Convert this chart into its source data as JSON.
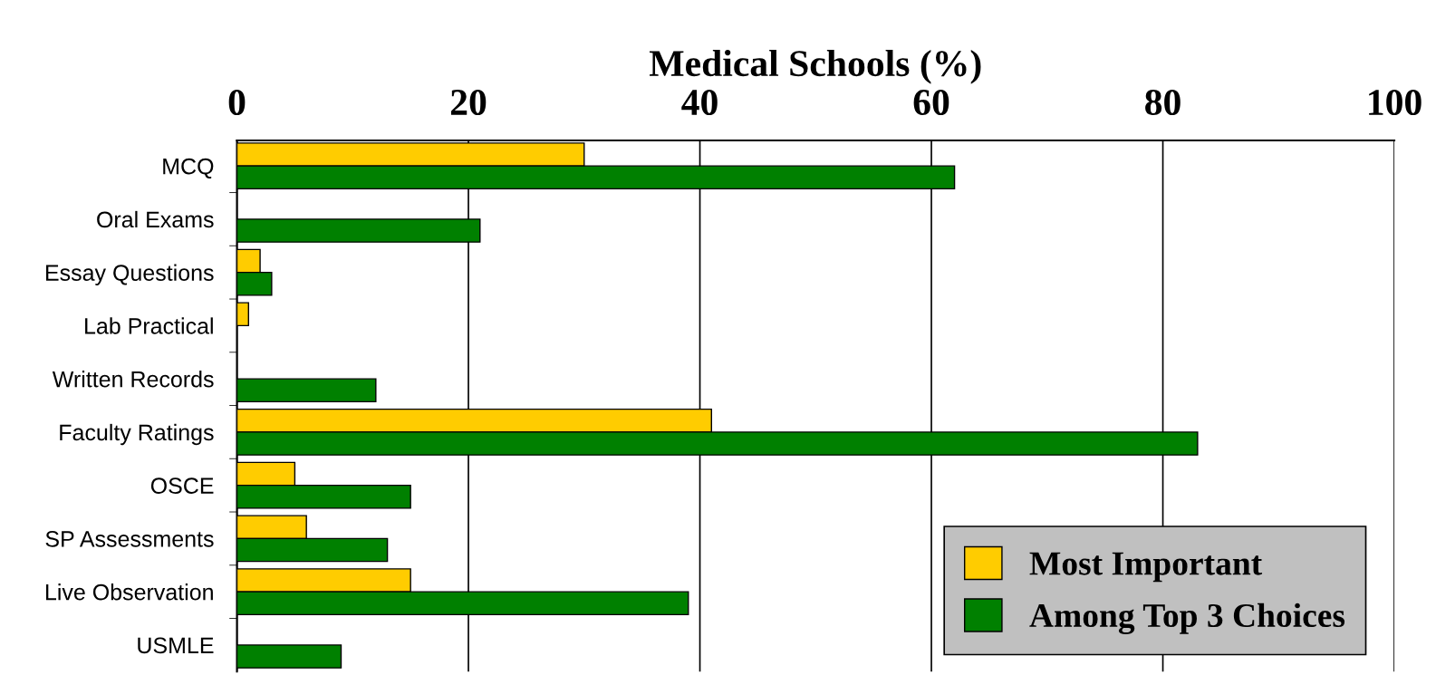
{
  "chart_data": {
    "type": "bar",
    "orientation": "horizontal",
    "xlabel": "Medical Schools (%)",
    "categories": [
      "MCQ",
      "Oral Exams",
      "Essay Questions",
      "Lab Practical",
      "Written Records",
      "Faculty Ratings",
      "OSCE",
      "SP Assessments",
      "Live Observation",
      "USMLE"
    ],
    "series": [
      {
        "name": "Most Important",
        "color": "#ffcc00",
        "values": [
          30,
          null,
          2,
          1,
          null,
          41,
          5,
          6,
          15,
          null
        ]
      },
      {
        "name": "Among Top 3 Choices",
        "color": "#008000",
        "values": [
          62,
          21,
          3,
          null,
          12,
          83,
          15,
          13,
          39,
          9
        ]
      }
    ],
    "xlim": [
      0,
      100
    ],
    "xticks": [
      0,
      20,
      40,
      60,
      80,
      100
    ],
    "grid": "x",
    "legend": "bottom right"
  }
}
